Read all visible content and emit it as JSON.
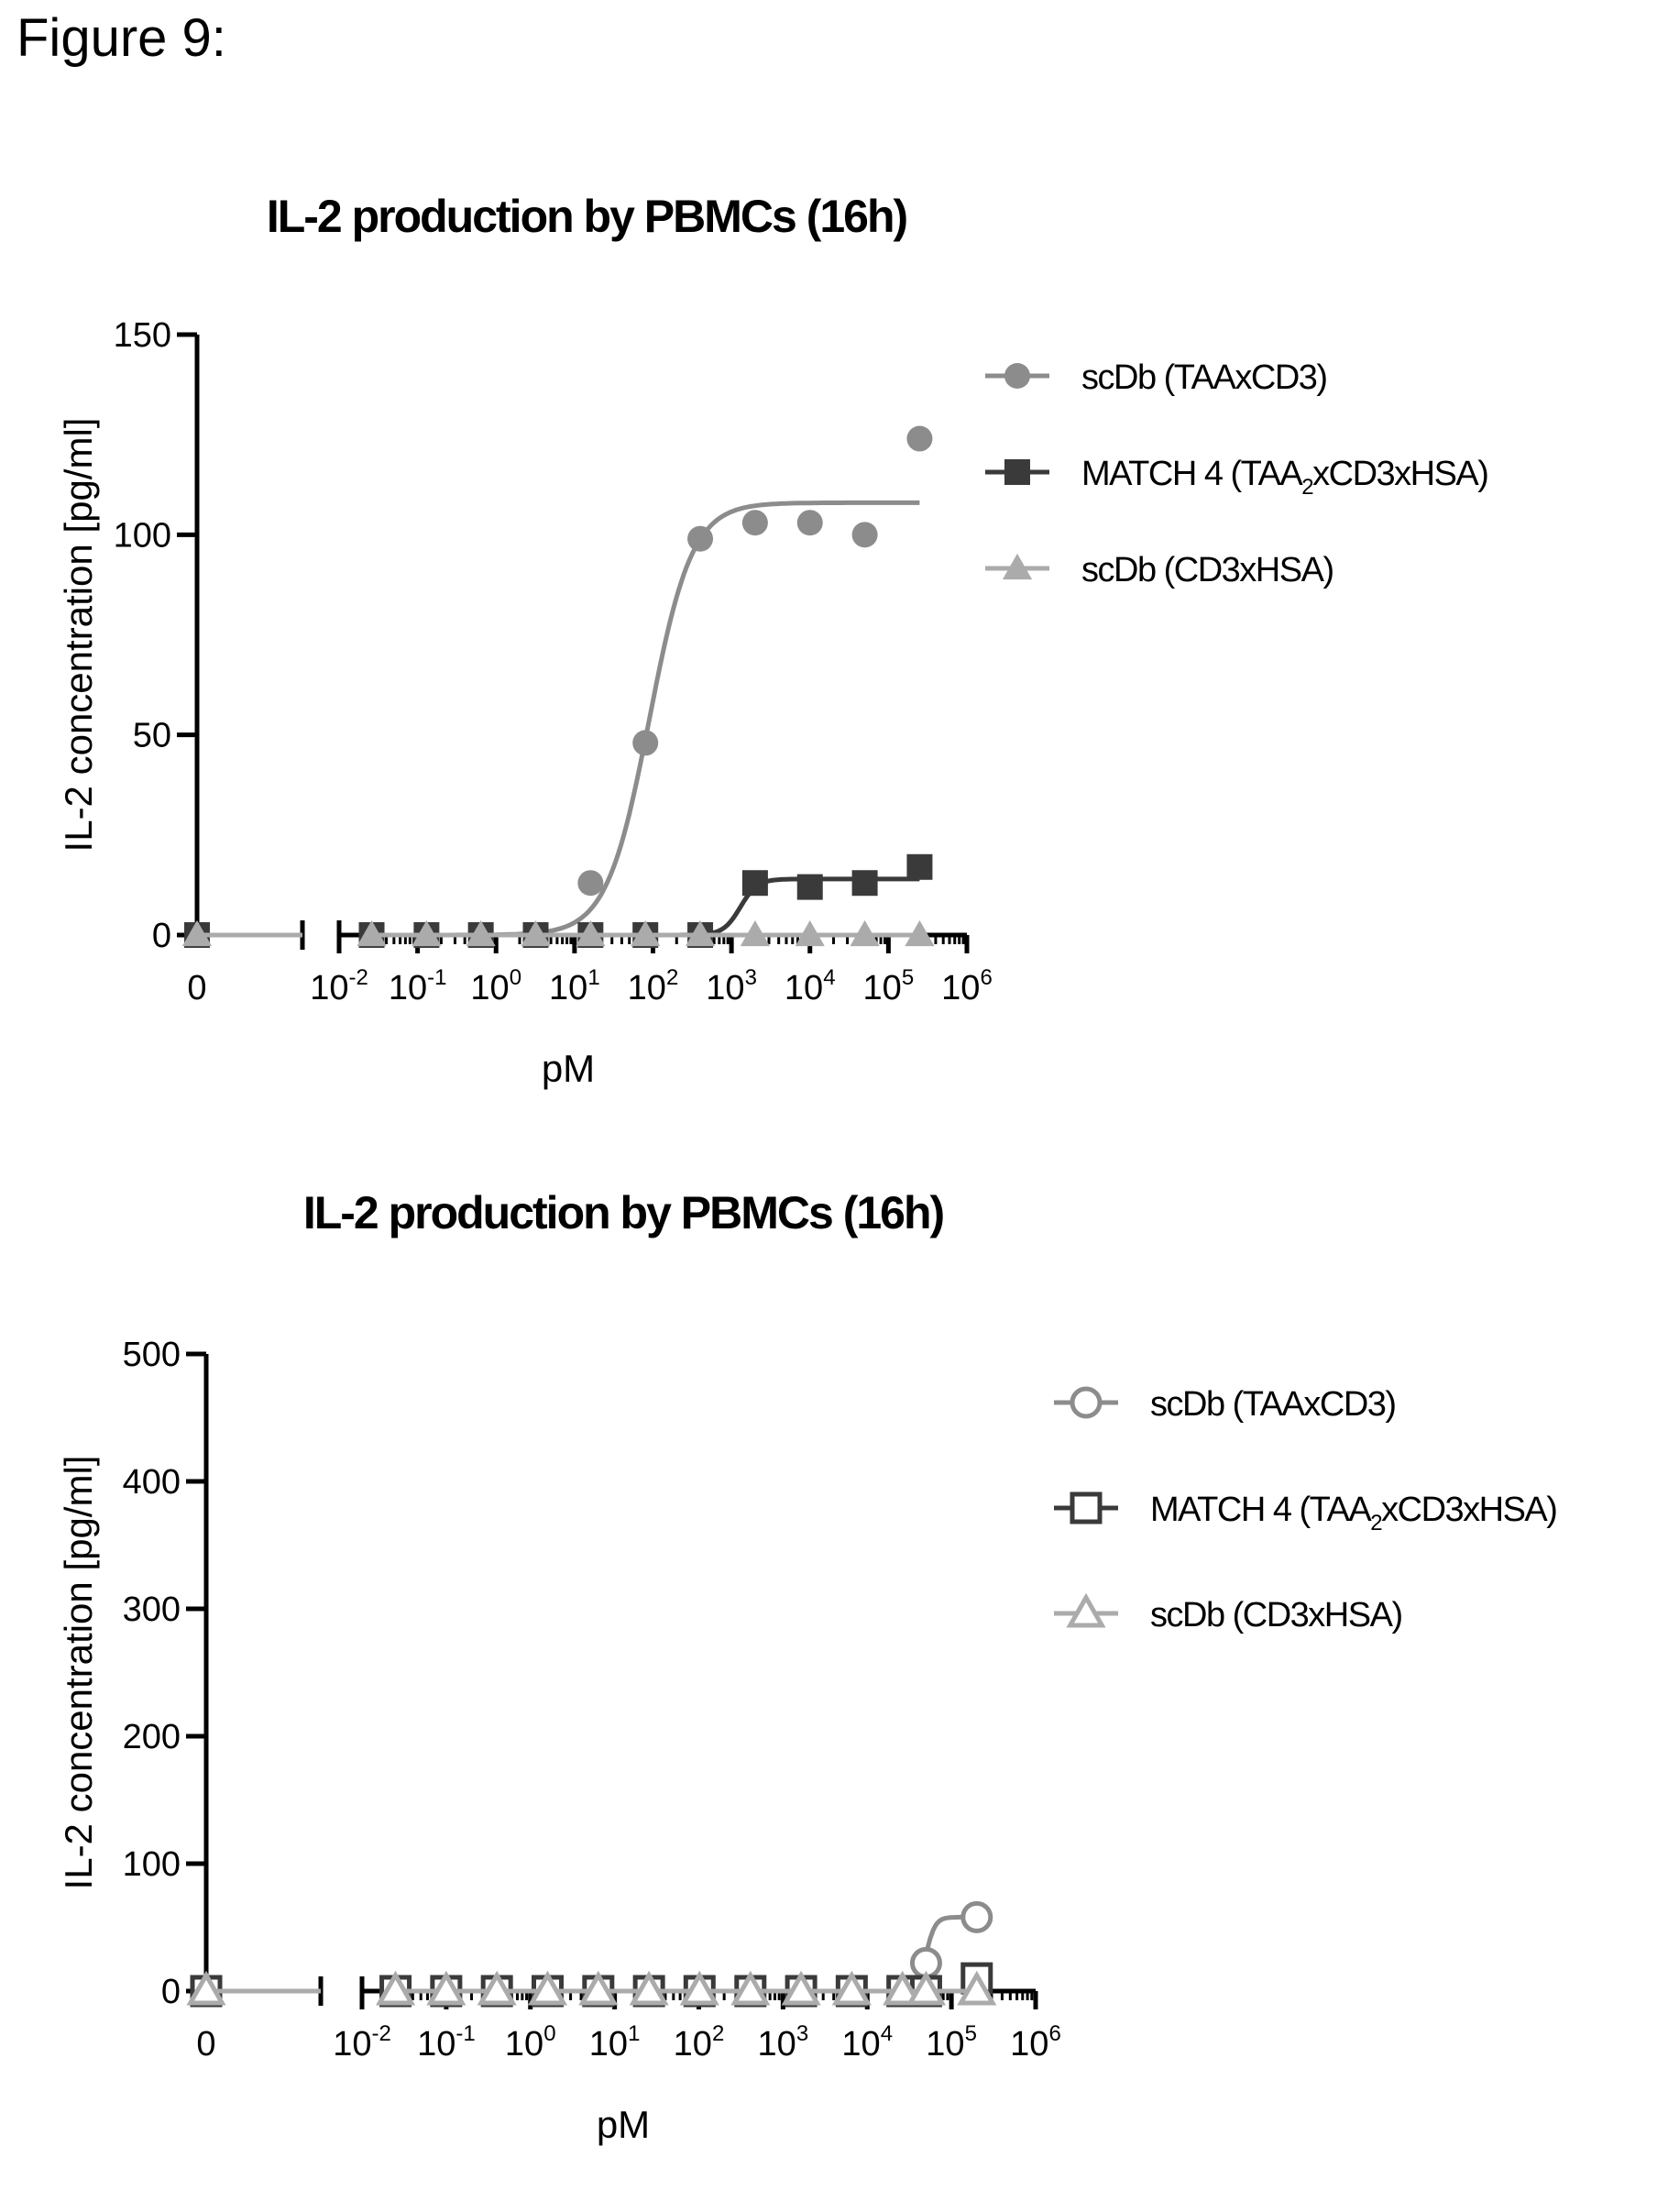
{
  "figure_label": "Figure 9:",
  "colors": {
    "scdb_taa_cd3": "#8c8c8c",
    "match4": "#3a3a3a",
    "scdb_cd3_hsa": "#ababab",
    "axis": "#000000"
  },
  "chart_data": [
    {
      "type": "scatter",
      "title": "IL-2 production by PBMCs (16h)",
      "xlabel": "pM",
      "ylabel": "IL-2 concentration [pg/ml]",
      "x_scale": "log10 with separate zero segment",
      "xlim": [
        0.01,
        1000000
      ],
      "ylim": [
        0,
        150
      ],
      "y_ticks": [
        "0",
        "50",
        "100",
        "150"
      ],
      "x_ticks": [
        {
          "base": "10",
          "exp": "-2"
        },
        {
          "base": "10",
          "exp": "-1"
        },
        {
          "base": "10",
          "exp": "0"
        },
        {
          "base": "10",
          "exp": "1"
        },
        {
          "base": "10",
          "exp": "2"
        },
        {
          "base": "10",
          "exp": "3"
        },
        {
          "base": "10",
          "exp": "4"
        },
        {
          "base": "10",
          "exp": "5"
        },
        {
          "base": "10",
          "exp": "6"
        }
      ],
      "x_zero_label": "0",
      "grid": false,
      "legend_position": "top-right",
      "marker_style": "filled",
      "series": [
        {
          "name_parts": [
            "scDb (TAAxCD3)"
          ],
          "marker": "circle",
          "color": "#8c8c8c",
          "zero_value": 0,
          "points": [
            {
              "x": 0.026,
              "y": 0
            },
            {
              "x": 0.13,
              "y": 0
            },
            {
              "x": 0.64,
              "y": 0
            },
            {
              "x": 3.2,
              "y": 0
            },
            {
              "x": 16,
              "y": 13
            },
            {
              "x": 80,
              "y": 48
            },
            {
              "x": 400,
              "y": 99
            },
            {
              "x": 2000,
              "y": 103
            },
            {
              "x": 10000,
              "y": 103
            },
            {
              "x": 50000,
              "y": 100
            },
            {
              "x": 250000,
              "y": 124
            }
          ],
          "fit": {
            "model": "sigmoid",
            "bottom": 0,
            "top": 108,
            "ec50": 90,
            "hill": 1.6,
            "x_start": 0.026,
            "x_end": 250000
          }
        },
        {
          "name_parts": [
            "MATCH 4 (TAA",
            "2",
            "xCD3xHSA)"
          ],
          "marker": "square",
          "color": "#3a3a3a",
          "zero_value": 0,
          "points": [
            {
              "x": 0.026,
              "y": 0
            },
            {
              "x": 0.13,
              "y": 0
            },
            {
              "x": 0.64,
              "y": 0
            },
            {
              "x": 3.2,
              "y": 0
            },
            {
              "x": 16,
              "y": 0
            },
            {
              "x": 80,
              "y": 0
            },
            {
              "x": 400,
              "y": 0
            },
            {
              "x": 2000,
              "y": 13
            },
            {
              "x": 10000,
              "y": 12
            },
            {
              "x": 50000,
              "y": 13
            },
            {
              "x": 250000,
              "y": 17
            }
          ],
          "fit": {
            "model": "sigmoid",
            "bottom": 0,
            "top": 14,
            "ec50": 1300,
            "hill": 4,
            "x_start": 0.026,
            "x_end": 250000
          }
        },
        {
          "name_parts": [
            "scDb (CD3xHSA)"
          ],
          "marker": "triangle",
          "color": "#ababab",
          "zero_value": 0,
          "points": [
            {
              "x": 0.026,
              "y": 0
            },
            {
              "x": 0.13,
              "y": 0
            },
            {
              "x": 0.64,
              "y": 0
            },
            {
              "x": 3.2,
              "y": 0
            },
            {
              "x": 16,
              "y": 0
            },
            {
              "x": 80,
              "y": 0
            },
            {
              "x": 400,
              "y": 0
            },
            {
              "x": 2000,
              "y": 0
            },
            {
              "x": 10000,
              "y": 0
            },
            {
              "x": 50000,
              "y": 0
            },
            {
              "x": 250000,
              "y": 0
            }
          ],
          "fit": {
            "model": "flat",
            "bottom": 0,
            "top": 0,
            "x_start": 0.026,
            "x_end": 250000
          }
        }
      ]
    },
    {
      "type": "scatter",
      "title": "IL-2 production by PBMCs (16h)",
      "xlabel": "pM",
      "ylabel": "IL-2 concentration [pg/ml]",
      "x_scale": "log10 with separate zero segment",
      "xlim": [
        0.01,
        1000000
      ],
      "ylim": [
        0,
        500
      ],
      "y_ticks": [
        "0",
        "100",
        "200",
        "300",
        "400",
        "500"
      ],
      "x_ticks": [
        {
          "base": "10",
          "exp": "-2"
        },
        {
          "base": "10",
          "exp": "-1"
        },
        {
          "base": "10",
          "exp": "0"
        },
        {
          "base": "10",
          "exp": "1"
        },
        {
          "base": "10",
          "exp": "2"
        },
        {
          "base": "10",
          "exp": "3"
        },
        {
          "base": "10",
          "exp": "4"
        },
        {
          "base": "10",
          "exp": "5"
        },
        {
          "base": "10",
          "exp": "6"
        }
      ],
      "x_zero_label": "0",
      "grid": false,
      "legend_position": "top-right",
      "marker_style": "open",
      "series": [
        {
          "name_parts": [
            "scDb (TAAxCD3)"
          ],
          "marker": "circle",
          "color": "#8c8c8c",
          "zero_value": 0,
          "points": [
            {
              "x": 0.025,
              "y": 0
            },
            {
              "x": 0.1,
              "y": 0
            },
            {
              "x": 0.4,
              "y": 0
            },
            {
              "x": 1.6,
              "y": 0
            },
            {
              "x": 6.4,
              "y": 0
            },
            {
              "x": 25.6,
              "y": 0
            },
            {
              "x": 102,
              "y": 0
            },
            {
              "x": 410,
              "y": 0
            },
            {
              "x": 1640,
              "y": 0
            },
            {
              "x": 6550,
              "y": 0
            },
            {
              "x": 26200,
              "y": 0
            },
            {
              "x": 50000,
              "y": 22
            },
            {
              "x": 200000,
              "y": 58
            }
          ],
          "fit": {
            "model": "sigmoid",
            "bottom": 0,
            "top": 58,
            "ec50": 50000,
            "hill": 8,
            "x_start": 0.025,
            "x_end": 200000
          }
        },
        {
          "name_parts": [
            "MATCH 4 (TAA",
            "2",
            "xCD3xHSA)"
          ],
          "marker": "square",
          "color": "#3a3a3a",
          "zero_value": 0,
          "points": [
            {
              "x": 0.025,
              "y": 0
            },
            {
              "x": 0.1,
              "y": 0
            },
            {
              "x": 0.4,
              "y": 0
            },
            {
              "x": 1.6,
              "y": 0
            },
            {
              "x": 6.4,
              "y": 0
            },
            {
              "x": 25.6,
              "y": 0
            },
            {
              "x": 102,
              "y": 0
            },
            {
              "x": 410,
              "y": 0
            },
            {
              "x": 1640,
              "y": 0
            },
            {
              "x": 6550,
              "y": 0
            },
            {
              "x": 26200,
              "y": 0
            },
            {
              "x": 50000,
              "y": 0
            },
            {
              "x": 200000,
              "y": 10
            }
          ],
          "fit": {
            "model": "flat",
            "bottom": 0,
            "top": 0,
            "x_start": 0.025,
            "x_end": 200000
          }
        },
        {
          "name_parts": [
            "scDb (CD3xHSA)"
          ],
          "marker": "triangle",
          "color": "#ababab",
          "zero_value": 0,
          "points": [
            {
              "x": 0.025,
              "y": 0
            },
            {
              "x": 0.1,
              "y": 0
            },
            {
              "x": 0.4,
              "y": 0
            },
            {
              "x": 1.6,
              "y": 0
            },
            {
              "x": 6.4,
              "y": 0
            },
            {
              "x": 25.6,
              "y": 0
            },
            {
              "x": 102,
              "y": 0
            },
            {
              "x": 410,
              "y": 0
            },
            {
              "x": 1640,
              "y": 0
            },
            {
              "x": 6550,
              "y": 0
            },
            {
              "x": 26200,
              "y": 0
            },
            {
              "x": 50000,
              "y": 0
            },
            {
              "x": 200000,
              "y": 0
            }
          ],
          "fit": {
            "model": "flat",
            "bottom": 0,
            "top": 0,
            "x_start": 0.025,
            "x_end": 200000
          }
        }
      ]
    }
  ]
}
